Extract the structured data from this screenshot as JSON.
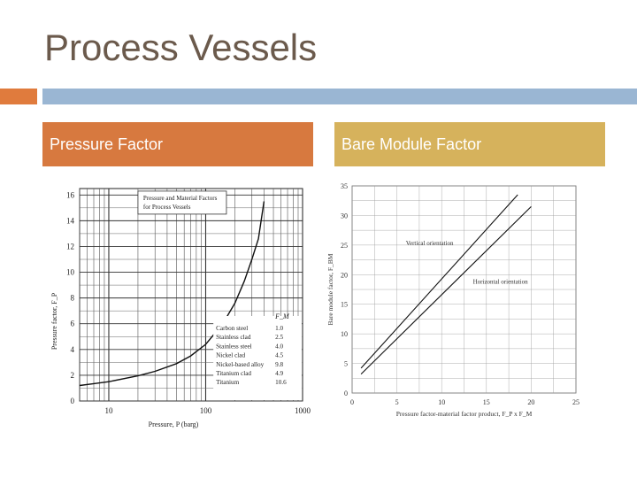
{
  "slide": {
    "title": "Process Vessels",
    "left_header": "Pressure Factor",
    "right_header": "Bare Module Factor"
  },
  "chart_data": [
    {
      "type": "line",
      "title": "",
      "inset_title": [
        "Pressure and Material Factors",
        "for Process Vessels"
      ],
      "xlabel": "Pressure, P (barg)",
      "ylabel": "Pressure factor, F_P",
      "xscale": "log",
      "xlim": [
        5,
        1000
      ],
      "ylim": [
        0,
        16.5
      ],
      "xticks": [
        10,
        100,
        1000
      ],
      "yticks": [
        0,
        2,
        4,
        6,
        8,
        10,
        12,
        14,
        16
      ],
      "grid": true,
      "series": [
        {
          "name": "",
          "x": [
            5,
            7,
            10,
            20,
            30,
            50,
            70,
            100,
            150,
            200,
            250,
            300,
            350,
            400
          ],
          "y": [
            1.2,
            1.35,
            1.5,
            1.95,
            2.3,
            2.9,
            3.5,
            4.4,
            6.0,
            7.6,
            9.3,
            11.0,
            12.6,
            15.5
          ]
        }
      ],
      "legend": {
        "header": "F_M",
        "placement": "bottom-right",
        "entries": [
          {
            "label": "Carbon steel",
            "value": "1.0"
          },
          {
            "label": "Stainless clad",
            "value": "2.5"
          },
          {
            "label": "Stainless steel",
            "value": "4.0"
          },
          {
            "label": "Nickel clad",
            "value": "4.5"
          },
          {
            "label": "Nickel-based alloy",
            "value": "9.8"
          },
          {
            "label": "Titanium clad",
            "value": "4.9"
          },
          {
            "label": "Titanium",
            "value": "10.6"
          }
        ]
      }
    },
    {
      "type": "line",
      "title": "",
      "xlabel": "Pressure factor-material factor product, F_P x F_M",
      "ylabel": "Bare module factor, F_BM",
      "xlim": [
        0,
        25
      ],
      "ylim": [
        0,
        35
      ],
      "xticks": [
        0,
        5,
        10,
        15,
        20,
        25
      ],
      "yticks": [
        0,
        5,
        10,
        15,
        20,
        25,
        30,
        35
      ],
      "grid": true,
      "series": [
        {
          "name": "Vertical orientation",
          "x": [
            1,
            18.5
          ],
          "y": [
            4.2,
            33.5
          ]
        },
        {
          "name": "Horizontal orientation",
          "x": [
            1,
            20
          ],
          "y": [
            3.2,
            31.5
          ]
        }
      ],
      "annotations": [
        {
          "text": "Vertical orientation",
          "x": 6,
          "y": 25
        },
        {
          "text": "Horizontal orientation",
          "x": 13.5,
          "y": 18.5
        }
      ]
    }
  ]
}
